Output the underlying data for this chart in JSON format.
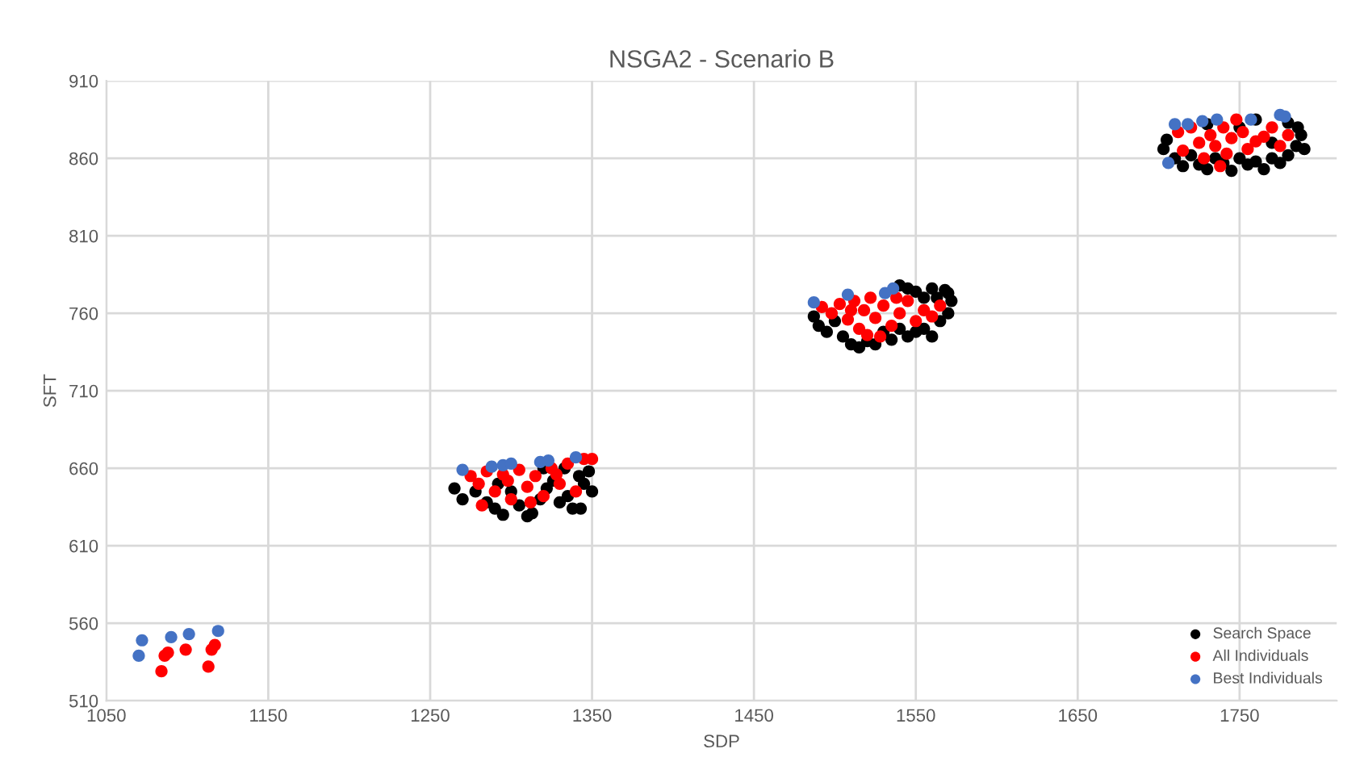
{
  "chart_data": {
    "type": "scatter",
    "title": "NSGA2 - Scenario B",
    "xlabel": "SDP",
    "ylabel": "SFT",
    "xlim": [
      1050,
      1810
    ],
    "ylim": [
      510,
      910
    ],
    "xticks": [
      1050,
      1150,
      1250,
      1350,
      1450,
      1550,
      1650,
      1750
    ],
    "yticks": [
      510,
      560,
      610,
      660,
      710,
      760,
      810,
      860,
      910
    ],
    "grid": true,
    "legend": "bottom right",
    "marker": "circle",
    "series": [
      {
        "name": "Search Space",
        "color": "#000000",
        "x": [
          1265,
          1270,
          1278,
          1285,
          1290,
          1295,
          1300,
          1305,
          1310,
          1313,
          1318,
          1322,
          1326,
          1330,
          1335,
          1338,
          1342,
          1345,
          1348,
          1350,
          1343,
          1320,
          1333,
          1292,
          1487,
          1490,
          1495,
          1500,
          1505,
          1510,
          1515,
          1520,
          1525,
          1530,
          1535,
          1540,
          1545,
          1550,
          1555,
          1560,
          1565,
          1570,
          1572,
          1568,
          1560,
          1550,
          1545,
          1555,
          1563,
          1570,
          1540,
          1703,
          1705,
          1710,
          1715,
          1720,
          1725,
          1730,
          1735,
          1740,
          1745,
          1750,
          1755,
          1760,
          1765,
          1770,
          1775,
          1780,
          1785,
          1788,
          1786,
          1780,
          1790,
          1760,
          1730,
          1750,
          1770
        ],
        "values": [
          647,
          640,
          645,
          638,
          634,
          630,
          645,
          636,
          629,
          631,
          640,
          647,
          652,
          638,
          642,
          634,
          655,
          650,
          658,
          645,
          634,
          660,
          660,
          650,
          758,
          752,
          748,
          755,
          745,
          740,
          738,
          742,
          740,
          748,
          743,
          750,
          745,
          748,
          750,
          745,
          755,
          760,
          768,
          775,
          776,
          774,
          776,
          770,
          770,
          773,
          778,
          866,
          872,
          860,
          855,
          862,
          856,
          853,
          860,
          857,
          852,
          860,
          856,
          858,
          853,
          860,
          857,
          862,
          868,
          875,
          880,
          883,
          866,
          885,
          882,
          880,
          870
        ]
      },
      {
        "name": "All Individuals",
        "color": "#ff0000",
        "x": [
          1084,
          1086,
          1088,
          1099,
          1113,
          1115,
          1117,
          1275,
          1280,
          1285,
          1290,
          1298,
          1305,
          1310,
          1315,
          1320,
          1325,
          1330,
          1335,
          1340,
          1345,
          1350,
          1282,
          1300,
          1312,
          1328,
          1295,
          1492,
          1498,
          1503,
          1508,
          1512,
          1515,
          1518,
          1522,
          1525,
          1528,
          1530,
          1535,
          1540,
          1545,
          1550,
          1555,
          1560,
          1565,
          1510,
          1520,
          1538,
          1712,
          1715,
          1720,
          1725,
          1728,
          1732,
          1735,
          1740,
          1742,
          1745,
          1748,
          1752,
          1755,
          1760,
          1765,
          1770,
          1775,
          1780,
          1738
        ],
        "values": [
          529,
          539,
          541,
          543,
          532,
          543,
          546,
          655,
          650,
          658,
          645,
          652,
          659,
          648,
          655,
          642,
          660,
          650,
          663,
          645,
          666,
          666,
          636,
          640,
          638,
          656,
          656,
          764,
          760,
          766,
          756,
          768,
          750,
          762,
          770,
          757,
          745,
          765,
          752,
          760,
          768,
          755,
          762,
          758,
          765,
          762,
          746,
          770,
          877,
          865,
          880,
          870,
          860,
          875,
          868,
          880,
          863,
          873,
          885,
          877,
          866,
          871,
          874,
          880,
          868,
          875,
          855
        ]
      },
      {
        "name": "Best Individuals",
        "color": "#4472c4",
        "x": [
          1072,
          1070,
          1090,
          1101,
          1119,
          1270,
          1288,
          1295,
          1300,
          1318,
          1323,
          1340,
          1487,
          1508,
          1536,
          1531,
          1706,
          1710,
          1718,
          1727,
          1736,
          1757,
          1775,
          1778
        ],
        "values": [
          549,
          539,
          551,
          553,
          555,
          659,
          661,
          662,
          663,
          664,
          665,
          667,
          767,
          772,
          776,
          773,
          857,
          882,
          882,
          884,
          885,
          885,
          888,
          887
        ]
      }
    ]
  }
}
